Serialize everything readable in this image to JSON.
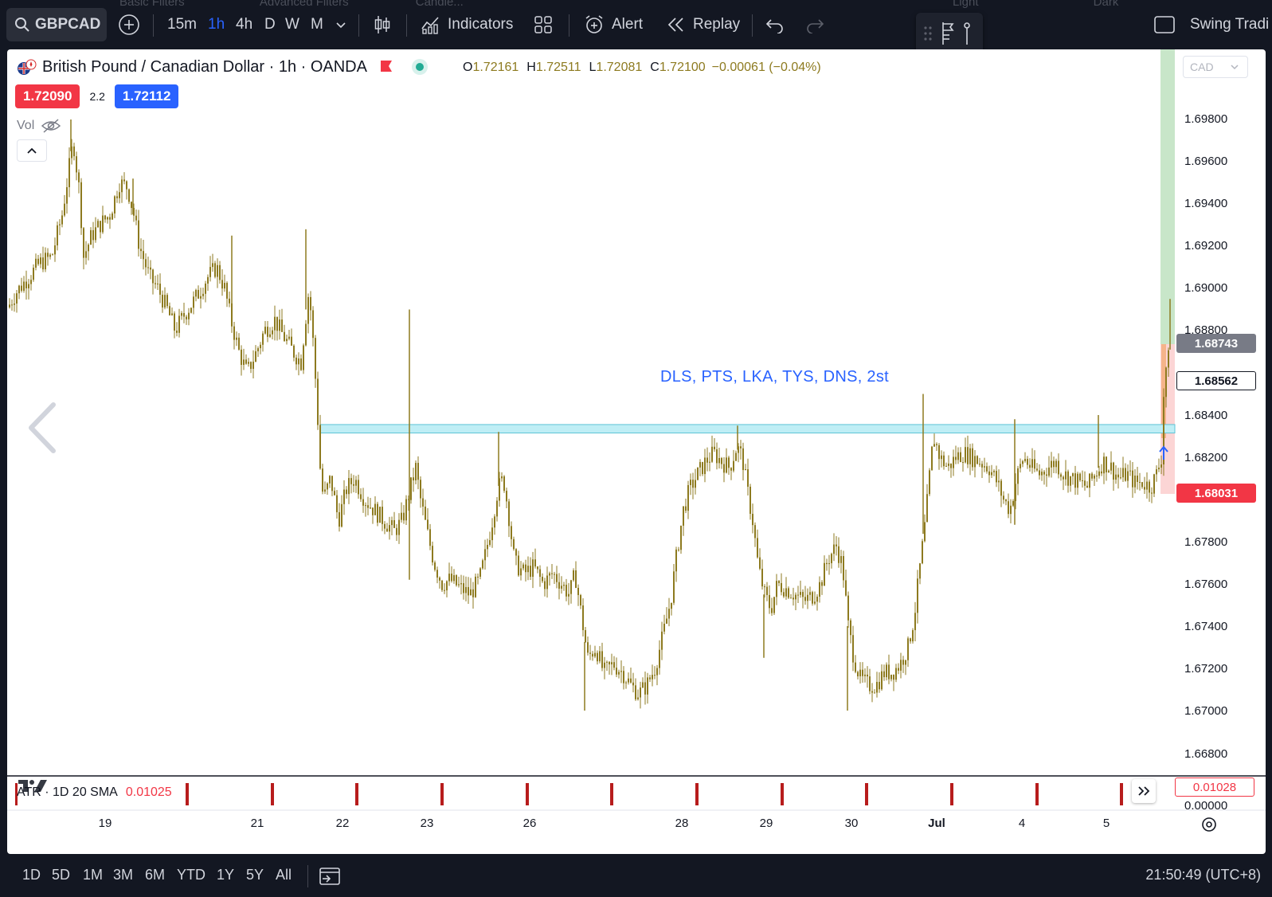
{
  "toolbar": {
    "symbol": "GBPCAD",
    "timeframes": [
      "15m",
      "1h",
      "4h",
      "D",
      "W",
      "M"
    ],
    "active_timeframe": "1h",
    "indicators_label": "Indicators",
    "alert_label": "Alert",
    "replay_label": "Replay",
    "layout_name": "Swing Tradi",
    "ghost_tabs": [
      "Basic Filters",
      "Advanced Filters",
      "Candle...",
      "Light",
      "Dark"
    ]
  },
  "legend": {
    "title": "British Pound / Canadian Dollar · 1h · OANDA",
    "open_label": "O",
    "open": "1.72161",
    "high_label": "H",
    "high": "1.72511",
    "low_label": "L",
    "low": "1.72081",
    "close_label": "C",
    "close": "1.72100",
    "change": "−0.00061 (−0.04%)",
    "bid": "1.72090",
    "spread": "2.2",
    "ask": "1.72112",
    "vol_label": "Vol"
  },
  "annotation": "DLS, PTS, LKA, TYS, DNS, 2st",
  "price_scale": {
    "currency": "CAD",
    "labels": [
      "1.69800",
      "1.69600",
      "1.69400",
      "1.69200",
      "1.69000",
      "1.68800",
      "1.68400",
      "1.68200",
      "1.67800",
      "1.67600",
      "1.67400",
      "1.67200",
      "1.67000",
      "1.66800"
    ],
    "marker_gray": "1.68743",
    "marker_outline": "1.68562",
    "marker_red": "1.68031"
  },
  "atr": {
    "label": "ATR · 1D 20 SMA",
    "value": "0.01025",
    "scale_value": "0.01028",
    "scale_zero": "0.00000"
  },
  "time_axis": [
    "19",
    "21",
    "22",
    "23",
    "26",
    "28",
    "29",
    "30",
    "Jul",
    "4",
    "5"
  ],
  "bottombar": {
    "ranges": [
      "1D",
      "5D",
      "1M",
      "3M",
      "6M",
      "YTD",
      "1Y",
      "5Y",
      "All"
    ],
    "clock": "21:50:49 (UTC+8)"
  },
  "colors": {
    "candle": "#8d7a1f",
    "zone_fill": "#bfeef5",
    "zone_border": "#5fc4d6",
    "accent_blue": "#2962ff",
    "accent_red": "#f23645",
    "atr_bar": "#b71c1c"
  },
  "chart_data": {
    "type": "candlestick",
    "symbol": "GBPCAD",
    "interval": "1h",
    "ylim": [
      1.6667,
      1.701
    ],
    "support_zone": [
      1.68315,
      1.68355
    ],
    "path": [
      [
        0,
        1.6891
      ],
      [
        10,
        1.6898
      ],
      [
        25,
        1.6905
      ],
      [
        40,
        1.6912
      ],
      [
        55,
        1.6915
      ],
      [
        68,
        1.6935
      ],
      [
        76,
        1.6955
      ],
      [
        82,
        1.697
      ],
      [
        90,
        1.6945
      ],
      [
        95,
        1.6915
      ],
      [
        105,
        1.6925
      ],
      [
        115,
        1.693
      ],
      [
        128,
        1.6935
      ],
      [
        140,
        1.695
      ],
      [
        150,
        1.6948
      ],
      [
        158,
        1.6935
      ],
      [
        165,
        1.692
      ],
      [
        178,
        1.6905
      ],
      [
        188,
        1.69
      ],
      [
        200,
        1.689
      ],
      [
        210,
        1.688
      ],
      [
        222,
        1.6888
      ],
      [
        235,
        1.6895
      ],
      [
        250,
        1.6905
      ],
      [
        262,
        1.691
      ],
      [
        272,
        1.69
      ],
      [
        280,
        1.6885
      ],
      [
        290,
        1.687
      ],
      [
        300,
        1.686
      ],
      [
        312,
        1.687
      ],
      [
        322,
        1.688
      ],
      [
        335,
        1.6885
      ],
      [
        345,
        1.6878
      ],
      [
        358,
        1.687
      ],
      [
        368,
        1.6865
      ],
      [
        372,
        1.688
      ],
      [
        378,
        1.69
      ],
      [
        384,
        1.687
      ],
      [
        388,
        1.6845
      ],
      [
        392,
        1.6815
      ],
      [
        396,
        1.68
      ],
      [
        405,
        1.681
      ],
      [
        415,
        1.679
      ],
      [
        425,
        1.6805
      ],
      [
        435,
        1.681
      ],
      [
        448,
        1.68
      ],
      [
        460,
        1.6795
      ],
      [
        472,
        1.679
      ],
      [
        485,
        1.6785
      ],
      [
        495,
        1.679
      ],
      [
        505,
        1.6805
      ],
      [
        512,
        1.6815
      ],
      [
        518,
        1.68
      ],
      [
        526,
        1.6785
      ],
      [
        535,
        1.677
      ],
      [
        545,
        1.676
      ],
      [
        555,
        1.6762
      ],
      [
        568,
        1.6758
      ],
      [
        580,
        1.6755
      ],
      [
        592,
        1.6762
      ],
      [
        600,
        1.6775
      ],
      [
        608,
        1.679
      ],
      [
        615,
        1.6805
      ],
      [
        622,
        1.681
      ],
      [
        628,
        1.6795
      ],
      [
        636,
        1.677
      ],
      [
        648,
        1.6765
      ],
      [
        660,
        1.6768
      ],
      [
        672,
        1.676
      ],
      [
        684,
        1.6765
      ],
      [
        695,
        1.676
      ],
      [
        705,
        1.6755
      ],
      [
        712,
        1.6765
      ],
      [
        720,
        1.6745
      ],
      [
        728,
        1.6725
      ],
      [
        738,
        1.673
      ],
      [
        748,
        1.6718
      ],
      [
        760,
        1.6722
      ],
      [
        772,
        1.6718
      ],
      [
        782,
        1.6712
      ],
      [
        792,
        1.6708
      ],
      [
        802,
        1.6712
      ],
      [
        812,
        1.672
      ],
      [
        822,
        1.6735
      ],
      [
        832,
        1.6752
      ],
      [
        840,
        1.6775
      ],
      [
        848,
        1.6795
      ],
      [
        856,
        1.6805
      ],
      [
        866,
        1.6812
      ],
      [
        876,
        1.6818
      ],
      [
        886,
        1.6822
      ],
      [
        896,
        1.6818
      ],
      [
        906,
        1.6815
      ],
      [
        915,
        1.6825
      ],
      [
        922,
        1.682
      ],
      [
        928,
        1.6805
      ],
      [
        935,
        1.679
      ],
      [
        942,
        1.6768
      ],
      [
        950,
        1.6755
      ],
      [
        958,
        1.6748
      ],
      [
        966,
        1.676
      ],
      [
        976,
        1.6758
      ],
      [
        988,
        1.6755
      ],
      [
        1000,
        1.6752
      ],
      [
        1012,
        1.6755
      ],
      [
        1020,
        1.676
      ],
      [
        1030,
        1.6772
      ],
      [
        1040,
        1.6778
      ],
      [
        1048,
        1.6768
      ],
      [
        1055,
        1.674
      ],
      [
        1062,
        1.6725
      ],
      [
        1070,
        1.6715
      ],
      [
        1080,
        1.6712
      ],
      [
        1090,
        1.6712
      ],
      [
        1100,
        1.6718
      ],
      [
        1110,
        1.6718
      ],
      [
        1120,
        1.6722
      ],
      [
        1130,
        1.673
      ],
      [
        1138,
        1.6745
      ],
      [
        1145,
        1.6768
      ],
      [
        1152,
        1.679
      ],
      [
        1158,
        1.6815
      ],
      [
        1162,
        1.683
      ],
      [
        1170,
        1.682
      ],
      [
        1180,
        1.6815
      ],
      [
        1190,
        1.682
      ],
      [
        1200,
        1.6822
      ],
      [
        1210,
        1.682
      ],
      [
        1220,
        1.6818
      ],
      [
        1232,
        1.6815
      ],
      [
        1242,
        1.6808
      ],
      [
        1250,
        1.68
      ],
      [
        1258,
        1.6795
      ],
      [
        1266,
        1.681
      ],
      [
        1275,
        1.682
      ],
      [
        1285,
        1.6815
      ],
      [
        1295,
        1.6812
      ],
      [
        1305,
        1.6815
      ],
      [
        1315,
        1.6818
      ],
      [
        1325,
        1.6812
      ],
      [
        1335,
        1.681
      ],
      [
        1345,
        1.6808
      ],
      [
        1355,
        1.6806
      ],
      [
        1365,
        1.6812
      ],
      [
        1375,
        1.6818
      ],
      [
        1385,
        1.6815
      ],
      [
        1395,
        1.681
      ],
      [
        1405,
        1.6812
      ],
      [
        1415,
        1.6808
      ],
      [
        1425,
        1.6808
      ],
      [
        1435,
        1.6806
      ],
      [
        1442,
        1.6812
      ],
      [
        1448,
        1.682
      ],
      [
        1452,
        1.686
      ],
      [
        1458,
        1.6868
      ],
      [
        1462,
        1.6874
      ]
    ],
    "spikes": [
      [
        80,
        1.698,
        null
      ],
      [
        158,
        1.6952,
        null
      ],
      [
        282,
        1.6925,
        null
      ],
      [
        375,
        1.6928,
        null
      ],
      [
        505,
        1.689,
        1.6762
      ],
      [
        617,
        1.6832,
        null
      ],
      [
        725,
        1.67,
        null
      ],
      [
        917,
        1.6835,
        null
      ],
      [
        950,
        1.6725,
        null
      ],
      [
        1150,
        1.685,
        null
      ],
      [
        1055,
        1.67,
        null
      ],
      [
        1265,
        1.6838,
        1.6788
      ],
      [
        1370,
        1.684,
        null
      ],
      [
        1460,
        1.6895,
        null
      ]
    ],
    "time_axis_labels": [
      "19",
      "21",
      "22",
      "23",
      "26",
      "28",
      "29",
      "30",
      "Jul",
      "4",
      "5"
    ]
  }
}
